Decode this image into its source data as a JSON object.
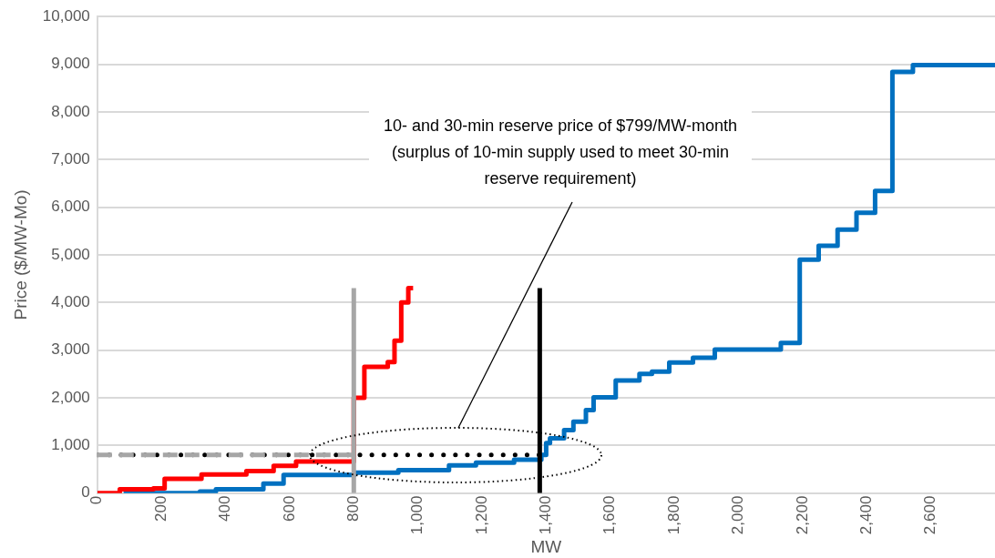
{
  "chart_data": {
    "type": "step",
    "xlabel": "MW",
    "ylabel": "Price ($/MW-Mo)",
    "xlim": [
      0,
      2800
    ],
    "ylim": [
      0,
      10000
    ],
    "xticks": [
      0,
      200,
      400,
      600,
      800,
      {
        "value": 1000,
        "label": "1,000"
      },
      {
        "value": 1200,
        "label": "1,200"
      },
      {
        "value": 1400,
        "label": "1,400"
      },
      {
        "value": 1600,
        "label": "1,600"
      },
      {
        "value": 1800,
        "label": "1,800"
      },
      {
        "value": 2000,
        "label": "2,000"
      },
      {
        "value": 2200,
        "label": "2,200"
      },
      {
        "value": 2400,
        "label": "2,400"
      },
      {
        "value": 2600,
        "label": "2,600"
      }
    ],
    "yticks": [
      0,
      {
        "value": 1000,
        "label": "1,000"
      },
      {
        "value": 2000,
        "label": "2,000"
      },
      {
        "value": 3000,
        "label": "3,000"
      },
      {
        "value": 4000,
        "label": "4,000"
      },
      {
        "value": 5000,
        "label": "5,000"
      },
      {
        "value": 6000,
        "label": "6,000"
      },
      {
        "value": 7000,
        "label": "7,000"
      },
      {
        "value": 8000,
        "label": "8,000"
      },
      {
        "value": 9000,
        "label": "9,000"
      },
      {
        "value": 10000,
        "label": "10,000"
      }
    ],
    "grid": "y",
    "legend": false,
    "marker": "none",
    "series": [
      {
        "line_style": "dashed",
        "color": "#a6a6a6",
        "x": [
          0,
          800
        ],
        "values": [
          800,
          800
        ]
      },
      {
        "line_style": "dotted",
        "color": "#000000",
        "x": [
          0,
          1380
        ],
        "values": [
          800,
          800
        ]
      },
      {
        "color": "#a6a6a6",
        "x": [
          800,
          800
        ],
        "values": [
          0,
          4300
        ]
      },
      {
        "color": "#000000",
        "x": [
          1380,
          1380
        ],
        "values": [
          0,
          4300
        ]
      },
      {
        "color": "#ff0000",
        "x": [
          0,
          70,
          175,
          210,
          325,
          465,
          550,
          620,
          800,
          833,
          906,
          927,
          948,
          970,
          985
        ],
        "values": [
          0,
          80,
          100,
          300,
          390,
          460,
          570,
          660,
          2000,
          2650,
          2750,
          3200,
          4000,
          4300,
          4300
        ]
      },
      {
        "color": "#0070c0",
        "x": [
          82,
          320,
          370,
          518,
          581,
          802,
          939,
          1097,
          1181,
          1300,
          1385,
          1400,
          1412,
          1456,
          1485,
          1524,
          1548,
          1617,
          1691,
          1730,
          1784,
          1858,
          1926,
          2132,
          2191,
          2250,
          2309,
          2368,
          2426,
          2480,
          2544,
          2800
        ],
        "values": [
          0,
          30,
          80,
          200,
          380,
          430,
          480,
          580,
          640,
          700,
          800,
          1050,
          1150,
          1320,
          1500,
          1740,
          2010,
          2360,
          2500,
          2550,
          2740,
          2840,
          3010,
          3150,
          4900,
          5190,
          5530,
          5880,
          6340,
          8840,
          8980,
          8980
        ]
      }
    ],
    "annotations": [
      "10- and 30-min reserve price of $799/MW-month (surplus of 10-min supply used to meet 30-min reserve requirement)"
    ]
  }
}
